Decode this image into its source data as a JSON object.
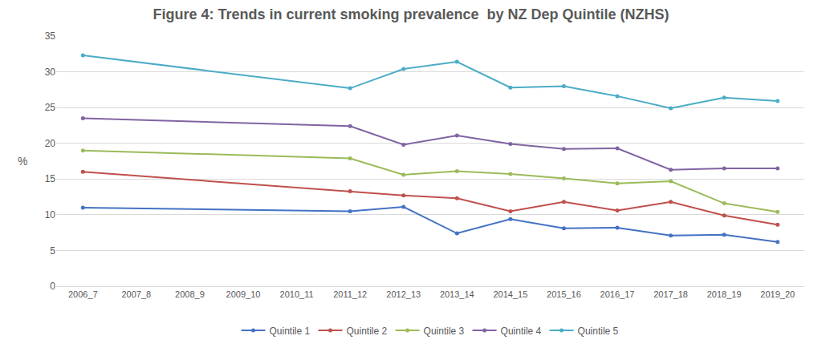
{
  "chart_data": {
    "type": "line",
    "title": "Figure 4: Trends in current smoking prevalence  by NZ Dep Quintile (NZHS)",
    "y_label": "%",
    "categories": [
      "2006_7",
      "2007_8",
      "2008_9",
      "2009_10",
      "2010_11",
      "2011_12",
      "2012_13",
      "2013_14",
      "2014_15",
      "2015_16",
      "2016_17",
      "2017_18",
      "2018_19",
      "2019_20"
    ],
    "series": [
      {
        "name": "Quintile 1",
        "color": "#4472c4",
        "values": [
          11.0,
          null,
          null,
          null,
          null,
          10.5,
          11.1,
          7.4,
          9.4,
          8.1,
          8.2,
          7.1,
          7.2,
          6.2
        ]
      },
      {
        "name": "Quintile 2",
        "color": "#c0504d",
        "values": [
          16.0,
          null,
          null,
          null,
          null,
          13.3,
          12.7,
          12.3,
          10.5,
          11.8,
          10.6,
          11.8,
          9.9,
          8.6
        ]
      },
      {
        "name": "Quintile 3",
        "color": "#9bbb59",
        "values": [
          19.0,
          null,
          null,
          null,
          null,
          17.9,
          15.6,
          16.1,
          15.7,
          15.1,
          14.4,
          14.7,
          11.6,
          10.4
        ]
      },
      {
        "name": "Quintile 4",
        "color": "#8064a2",
        "values": [
          23.5,
          null,
          null,
          null,
          null,
          22.4,
          19.8,
          21.1,
          19.9,
          19.2,
          19.3,
          16.3,
          16.5,
          16.5
        ]
      },
      {
        "name": "Quintile 5",
        "color": "#4bacc6",
        "values": [
          32.3,
          null,
          null,
          null,
          null,
          27.7,
          30.4,
          31.4,
          27.8,
          28.0,
          26.6,
          24.9,
          26.4,
          25.9
        ]
      }
    ],
    "ylim": [
      0,
      35
    ],
    "yticks": [
      0,
      5,
      10,
      15,
      20,
      25,
      30,
      35
    ],
    "grid": true,
    "legend": "bottom",
    "marker": "circle",
    "line_style": "solid"
  }
}
